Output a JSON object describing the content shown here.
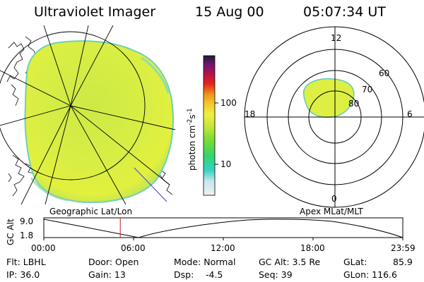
{
  "header": {
    "instrument": "Ultraviolet Imager",
    "date": "15 Aug 00",
    "time": "05:07:34 UT"
  },
  "colorbar": {
    "unit_label": "photon cm",
    "unit_exp1": "-2",
    "unit_mid": "s",
    "unit_exp2": "-1",
    "tick_100": "100",
    "tick_10": "10",
    "stops": [
      "#f0f0f0",
      "#c8e6ef",
      "#36d1c8",
      "#33d66b",
      "#7bdc34",
      "#c9e83a",
      "#eef03b",
      "#f5c52b",
      "#f3961c",
      "#e3241d",
      "#b3124d",
      "#6c1670",
      "#1c1c3a"
    ]
  },
  "left_panel": {
    "caption": "Geographic Lat/Lon",
    "disk_color": "#d4ec45",
    "disk_edge": "#3fc6c0"
  },
  "right_panel": {
    "caption": "Apex MLat/MLT",
    "mlt_12": "12",
    "mlt_18": "18",
    "mlt_6": "6",
    "mlt_0": "0",
    "lat_60": "60",
    "lat_70": "70",
    "lat_80": "80"
  },
  "timeline": {
    "ylabel": "GC Alt",
    "y_top": "9.0",
    "y_bottom": "1.8",
    "ticks": [
      "00:00",
      "06:00",
      "12:00",
      "18:00",
      "23:59"
    ],
    "current_time_fraction": 0.213
  },
  "footer": {
    "flt": "Flt: LBHL",
    "ip": "IP: 36.0",
    "door": "Door: Open",
    "gain": "Gain: 13",
    "mode": "Mode: Normal",
    "dsp": "Dsp:",
    "dsp_val": "-4.5",
    "gcalt": "GC Alt: 3.5 Re",
    "seq": "Seq: 39",
    "glat": "GLat:",
    "glat_val": "85.9",
    "glon": "GLon: 116.6"
  }
}
